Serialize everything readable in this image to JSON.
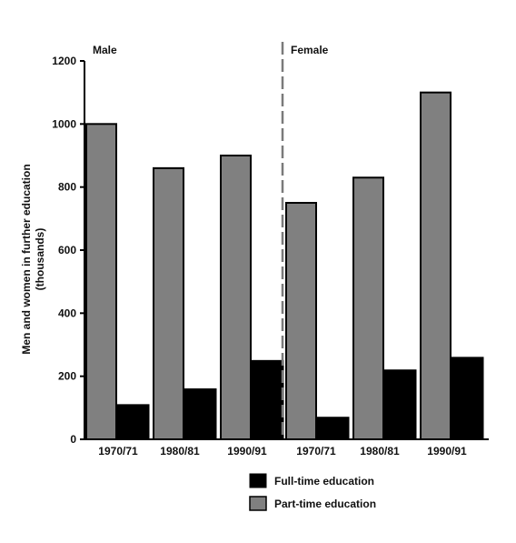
{
  "chart_data": {
    "type": "bar",
    "groups": [
      "Male",
      "Female"
    ],
    "categories": [
      "1970/71",
      "1980/81",
      "1990/91"
    ],
    "x_tick_labels": [
      "1970/71",
      "1980/81",
      "1990/91",
      "1970/71",
      "1980/81",
      "1990/91"
    ],
    "series": [
      {
        "name": "Part-time education",
        "color": "#808080",
        "values": {
          "Male": [
            1000,
            860,
            900
          ],
          "Female": [
            750,
            830,
            1100
          ]
        }
      },
      {
        "name": "Full-time education",
        "color": "#000000",
        "values": {
          "Male": [
            110,
            160,
            250
          ],
          "Female": [
            70,
            220,
            260
          ]
        }
      }
    ],
    "ylabel_lines": [
      "Men and women in further education",
      "(thousands)"
    ],
    "yticks": [
      0,
      200,
      400,
      600,
      800,
      1000,
      1200
    ],
    "ylim": [
      0,
      1200
    ],
    "legend": {
      "position": "bottom",
      "items": [
        "Full-time education",
        "Part-time education"
      ]
    },
    "grid": false
  }
}
